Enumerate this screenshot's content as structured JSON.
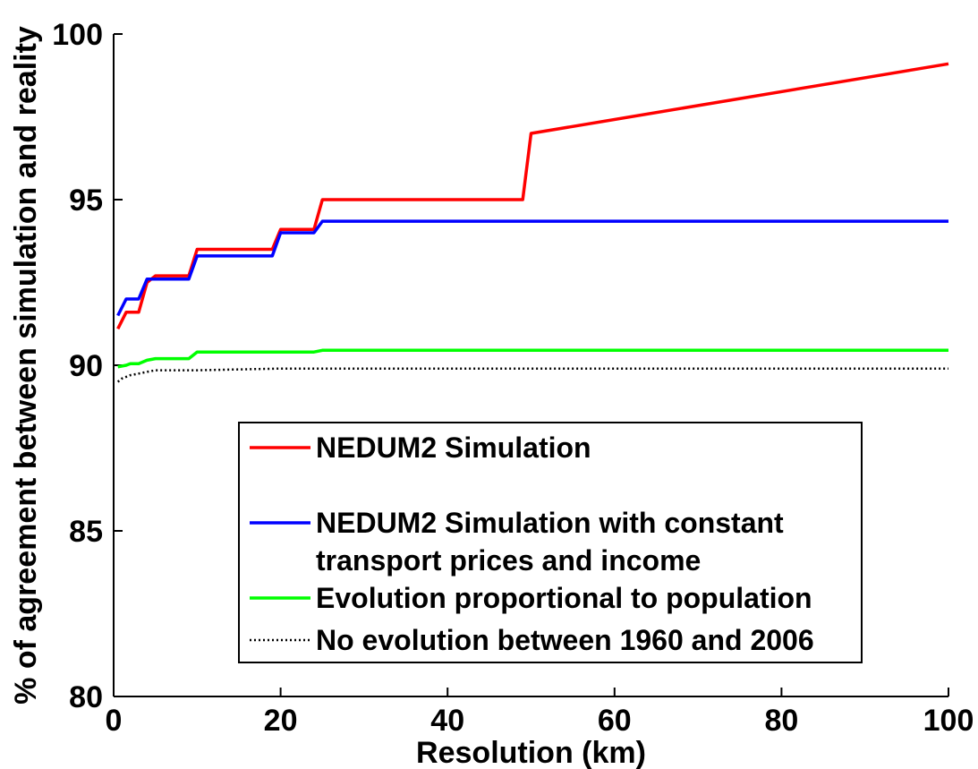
{
  "chart_data": {
    "type": "line",
    "xlabel": "Resolution (km)",
    "ylabel": "% of agreement between simulation and reality",
    "xlim": [
      0,
      100
    ],
    "ylim": [
      80,
      100
    ],
    "xticks": [
      0,
      20,
      40,
      60,
      80,
      100
    ],
    "yticks": [
      80,
      85,
      90,
      95,
      100
    ],
    "grid": false,
    "legend_position": "bottom-right",
    "series": [
      {
        "name": "NEDUM2 Simulation",
        "color": "#ff0000",
        "style": "solid",
        "x": [
          0.5,
          1.5,
          2.0,
          3.0,
          4.0,
          5.0,
          9.0,
          10.0,
          19.0,
          20.0,
          24.0,
          25.0,
          49.0,
          50.0,
          100.0
        ],
        "y": [
          91.1,
          91.6,
          91.6,
          91.6,
          92.5,
          92.7,
          92.7,
          93.5,
          93.5,
          94.1,
          94.1,
          95.0,
          95.0,
          97.0,
          99.1
        ]
      },
      {
        "name": "NEDUM2 Simulation with constant transport prices and income",
        "color": "#0000ff",
        "style": "solid",
        "x": [
          0.5,
          1.5,
          2.0,
          3.0,
          4.0,
          5.0,
          9.0,
          10.0,
          19.0,
          20.0,
          24.0,
          25.0,
          100.0
        ],
        "y": [
          91.5,
          92.0,
          92.0,
          92.0,
          92.6,
          92.6,
          92.6,
          93.3,
          93.3,
          94.0,
          94.0,
          94.35,
          94.35
        ]
      },
      {
        "name": "Evolution proportional to population",
        "color": "#00ff00",
        "style": "solid",
        "x": [
          0.5,
          1.5,
          2.0,
          3.0,
          4.0,
          5.0,
          9.0,
          10.0,
          19.0,
          20.0,
          24.0,
          25.0,
          100.0
        ],
        "y": [
          89.95,
          90.0,
          90.05,
          90.05,
          90.15,
          90.2,
          90.2,
          90.4,
          90.4,
          90.4,
          90.4,
          90.45,
          90.45
        ]
      },
      {
        "name": "No evolution between 1960 and 2006",
        "color": "#000000",
        "style": "dotted",
        "x": [
          0.5,
          1.0,
          2.0,
          3.0,
          4.0,
          5.0,
          10.0,
          20.0,
          25.0,
          100.0
        ],
        "y": [
          89.5,
          89.6,
          89.7,
          89.75,
          89.8,
          89.85,
          89.85,
          89.9,
          89.9,
          89.9
        ]
      }
    ],
    "legend_entries": [
      [
        "NEDUM2 Simulation"
      ],
      [
        "NEDUM2 Simulation with constant",
        "transport prices and income"
      ],
      [
        "Evolution proportional to population"
      ],
      [
        "No evolution between 1960 and 2006"
      ]
    ]
  }
}
